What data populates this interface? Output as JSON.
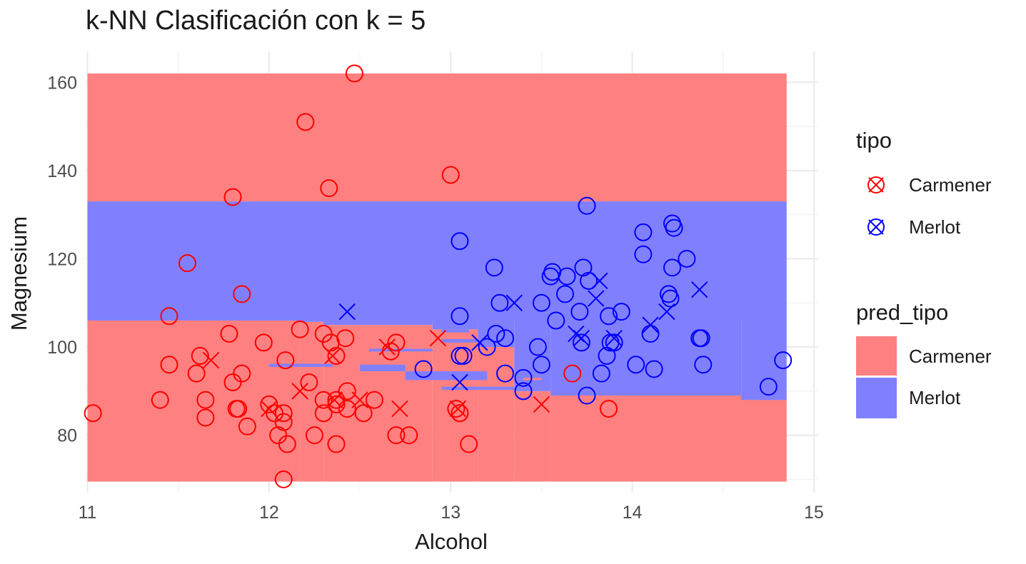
{
  "chart_data": {
    "type": "scatter",
    "title": "k-NN Clasificación con k = 5",
    "xlabel": "Alcohol",
    "ylabel": "Magnesium",
    "xlim": [
      10.99,
      15.02
    ],
    "ylim": [
      67,
      167
    ],
    "x_ticks": [
      11,
      12,
      13,
      14,
      15
    ],
    "y_ticks": [
      80,
      100,
      120,
      140,
      160
    ],
    "grid": true,
    "colors": {
      "Carmener": "#ff0000",
      "Merlot": "#0000ff",
      "Carmener_fill": "#ff8080",
      "Merlot_fill": "#8080ff"
    },
    "regions": [
      {
        "pred_tipo": "Carmener",
        "x": [
          11.0,
          14.85
        ],
        "y": [
          133,
          162
        ]
      },
      {
        "pred_tipo": "Merlot",
        "x": [
          11.0,
          14.85
        ],
        "y": [
          106,
          133
        ]
      },
      {
        "pred_tipo": "Carmener",
        "x": [
          11.0,
          12.17
        ],
        "y": [
          69.5,
          106
        ]
      },
      {
        "pred_tipo": "Carmener",
        "x": [
          12.17,
          12.3
        ],
        "y": [
          69.5,
          105.7
        ]
      },
      {
        "pred_tipo": "Carmener",
        "x": [
          12.3,
          12.9
        ],
        "y": [
          69.5,
          105
        ]
      },
      {
        "pred_tipo": "Carmener",
        "x": [
          12.9,
          13.15
        ],
        "y": [
          69.5,
          104
        ]
      },
      {
        "pred_tipo": "Carmener",
        "x": [
          13.15,
          13.35
        ],
        "y": [
          69.5,
          100
        ]
      },
      {
        "pred_tipo": "Carmener",
        "x": [
          13.35,
          13.55
        ],
        "y": [
          69.5,
          90
        ]
      },
      {
        "pred_tipo": "Carmener",
        "x": [
          13.55,
          14.85
        ],
        "y": [
          69.5,
          89
        ]
      },
      {
        "pred_tipo": "Merlot",
        "x": [
          12.17,
          12.3
        ],
        "y": [
          105.7,
          106
        ]
      },
      {
        "pred_tipo": "Merlot",
        "x": [
          12.3,
          12.9
        ],
        "y": [
          105,
          106
        ]
      },
      {
        "pred_tipo": "Merlot",
        "x": [
          12.9,
          13.15
        ],
        "y": [
          104,
          106
        ]
      },
      {
        "pred_tipo": "Merlot",
        "x": [
          13.15,
          13.35
        ],
        "y": [
          100,
          106
        ]
      },
      {
        "pred_tipo": "Merlot",
        "x": [
          13.35,
          13.55
        ],
        "y": [
          90,
          106
        ]
      },
      {
        "pred_tipo": "Merlot",
        "x": [
          13.55,
          14.6
        ],
        "y": [
          89,
          106
        ]
      },
      {
        "pred_tipo": "Merlot",
        "x": [
          14.6,
          14.85
        ],
        "y": [
          88,
          106
        ]
      },
      {
        "pred_tipo": "Merlot",
        "x": [
          12.0,
          12.35
        ],
        "y": [
          95.5,
          96.2
        ]
      },
      {
        "pred_tipo": "Merlot",
        "x": [
          12.5,
          12.75
        ],
        "y": [
          94.5,
          96
        ]
      },
      {
        "pred_tipo": "Merlot",
        "x": [
          12.55,
          12.9
        ],
        "y": [
          99,
          99.6
        ]
      },
      {
        "pred_tipo": "Merlot",
        "x": [
          12.95,
          13.2
        ],
        "y": [
          101,
          101.8
        ]
      },
      {
        "pred_tipo": "Merlot",
        "x": [
          12.95,
          13.1
        ],
        "y": [
          103.3,
          104
        ]
      },
      {
        "pred_tipo": "Merlot",
        "x": [
          12.75,
          13.2
        ],
        "y": [
          92.5,
          94.5
        ]
      },
      {
        "pred_tipo": "Merlot",
        "x": [
          12.95,
          13.35
        ],
        "y": [
          90.3,
          91
        ]
      },
      {
        "pred_tipo": "Carmener",
        "x": [
          13.4,
          13.5
        ],
        "y": [
          92.5,
          93
        ]
      }
    ],
    "series": [
      {
        "name": "Carmener",
        "marker": "circle",
        "points": [
          [
            11.03,
            85
          ],
          [
            11.4,
            88
          ],
          [
            11.45,
            96
          ],
          [
            11.45,
            107
          ],
          [
            11.55,
            119
          ],
          [
            11.6,
            94
          ],
          [
            11.62,
            98
          ],
          [
            11.65,
            88
          ],
          [
            11.65,
            84
          ],
          [
            11.78,
            103
          ],
          [
            11.8,
            92
          ],
          [
            11.82,
            86
          ],
          [
            11.83,
            86
          ],
          [
            11.85,
            94
          ],
          [
            11.85,
            112
          ],
          [
            11.8,
            134
          ],
          [
            11.88,
            82
          ],
          [
            11.97,
            101
          ],
          [
            12.0,
            87
          ],
          [
            12.03,
            85
          ],
          [
            12.05,
            80
          ],
          [
            12.08,
            85
          ],
          [
            12.08,
            83
          ],
          [
            12.1,
            78
          ],
          [
            12.08,
            70
          ],
          [
            12.09,
            97
          ],
          [
            12.17,
            104
          ],
          [
            12.22,
            92
          ],
          [
            12.25,
            80
          ],
          [
            12.2,
            151
          ],
          [
            12.3,
            103
          ],
          [
            12.3,
            88
          ],
          [
            12.3,
            85
          ],
          [
            12.34,
            101
          ],
          [
            12.37,
            98
          ],
          [
            12.37,
            88
          ],
          [
            12.37,
            87
          ],
          [
            12.37,
            78
          ],
          [
            12.42,
            102
          ],
          [
            12.43,
            90
          ],
          [
            12.43,
            86
          ],
          [
            12.52,
            85
          ],
          [
            12.58,
            88
          ],
          [
            12.33,
            136
          ],
          [
            12.47,
            162
          ],
          [
            12.67,
            99
          ],
          [
            12.7,
            101
          ],
          [
            12.7,
            80
          ],
          [
            12.77,
            80
          ],
          [
            13.0,
            139
          ],
          [
            13.03,
            86
          ],
          [
            13.05,
            85
          ],
          [
            13.1,
            78
          ],
          [
            13.67,
            94
          ],
          [
            13.87,
            86
          ]
        ]
      },
      {
        "name": "Carmener",
        "marker": "x",
        "points": [
          [
            11.68,
            97
          ],
          [
            12.0,
            86
          ],
          [
            12.17,
            90
          ],
          [
            12.35,
            98
          ],
          [
            12.36,
            88
          ],
          [
            12.5,
            88
          ],
          [
            12.65,
            100
          ],
          [
            12.72,
            86
          ],
          [
            12.93,
            102
          ],
          [
            13.04,
            86
          ],
          [
            13.5,
            87
          ]
        ]
      },
      {
        "name": "Merlot",
        "marker": "circle",
        "points": [
          [
            12.85,
            95
          ],
          [
            13.05,
            124
          ],
          [
            13.05,
            107
          ],
          [
            13.05,
            98
          ],
          [
            13.07,
            98
          ],
          [
            13.2,
            100
          ],
          [
            13.24,
            118
          ],
          [
            13.25,
            103
          ],
          [
            13.27,
            110
          ],
          [
            13.3,
            102
          ],
          [
            13.3,
            94
          ],
          [
            13.4,
            93
          ],
          [
            13.4,
            90
          ],
          [
            13.48,
            100
          ],
          [
            13.5,
            96
          ],
          [
            13.5,
            110
          ],
          [
            13.55,
            116
          ],
          [
            13.56,
            117
          ],
          [
            13.58,
            106
          ],
          [
            13.63,
            112
          ],
          [
            13.64,
            116
          ],
          [
            13.71,
            108
          ],
          [
            13.72,
            101
          ],
          [
            13.73,
            118
          ],
          [
            13.75,
            89
          ],
          [
            13.75,
            132
          ],
          [
            13.76,
            115
          ],
          [
            13.83,
            94
          ],
          [
            13.86,
            98
          ],
          [
            13.87,
            107
          ],
          [
            13.88,
            101
          ],
          [
            13.9,
            101
          ],
          [
            13.94,
            108
          ],
          [
            14.02,
            96
          ],
          [
            14.06,
            121
          ],
          [
            14.06,
            126
          ],
          [
            14.1,
            103
          ],
          [
            14.12,
            95
          ],
          [
            14.2,
            112
          ],
          [
            14.21,
            111
          ],
          [
            14.22,
            118
          ],
          [
            14.22,
            128
          ],
          [
            14.23,
            127
          ],
          [
            14.3,
            120
          ],
          [
            14.37,
            102
          ],
          [
            14.38,
            102
          ],
          [
            14.39,
            96
          ],
          [
            14.75,
            91
          ],
          [
            14.83,
            97
          ]
        ]
      },
      {
        "name": "Merlot",
        "marker": "x",
        "points": [
          [
            12.43,
            108
          ],
          [
            13.05,
            92
          ],
          [
            13.16,
            101
          ],
          [
            13.35,
            110
          ],
          [
            13.69,
            103
          ],
          [
            13.72,
            102
          ],
          [
            13.82,
            115
          ],
          [
            13.8,
            111
          ],
          [
            13.9,
            102
          ],
          [
            14.1,
            105
          ],
          [
            14.19,
            108
          ],
          [
            14.37,
            113
          ]
        ]
      }
    ]
  },
  "legend": {
    "tipo_title": "tipo",
    "tipo_items": [
      "Carmener",
      "Merlot"
    ],
    "pred_title": "pred_tipo",
    "pred_items": [
      "Carmener",
      "Merlot"
    ]
  }
}
